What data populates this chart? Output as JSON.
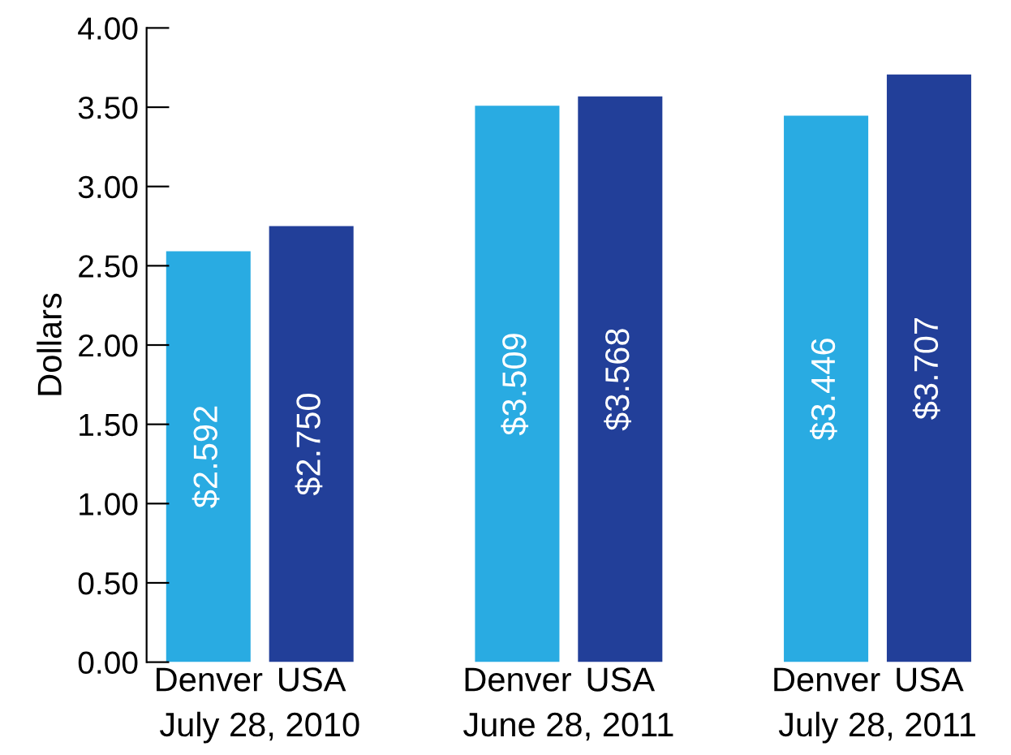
{
  "chart_data": {
    "type": "bar",
    "ylabel": "Dollars",
    "categories": [
      "Denver",
      "USA",
      null,
      "Denver",
      "USA",
      null,
      "Denver",
      "USA"
    ],
    "values": [
      2.592,
      2.75,
      null,
      3.509,
      3.568,
      null,
      3.446,
      3.707
    ],
    "colors": [
      "#29abe2",
      "#223f99",
      "#29abe2",
      "#29abe2",
      "#223f99",
      "#29abe2",
      "#29abe2",
      "#223f99"
    ],
    "value_labels": [
      "$2.592",
      "$2.750",
      null,
      "$3.509",
      "$3.568",
      null,
      "$3.446",
      "$3.707"
    ],
    "annotations": [
      "July 28, 2010",
      "June 28, 2011",
      "July 28, 2011"
    ],
    "ylim": [
      0,
      4
    ],
    "yticks": [
      {
        "value": 0,
        "label": "0.00"
      },
      {
        "value": 0.5,
        "label": "0.50"
      },
      {
        "value": 1,
        "label": "1.00"
      },
      {
        "value": 1.5,
        "label": "1.50"
      },
      {
        "value": 2,
        "label": "2.00"
      },
      {
        "value": 2.5,
        "label": "2.50"
      },
      {
        "value": 3,
        "label": "3.00"
      },
      {
        "value": 3.5,
        "label": "3.50"
      },
      {
        "value": 4,
        "label": "4.00"
      }
    ],
    "grid": false,
    "legend": false
  }
}
